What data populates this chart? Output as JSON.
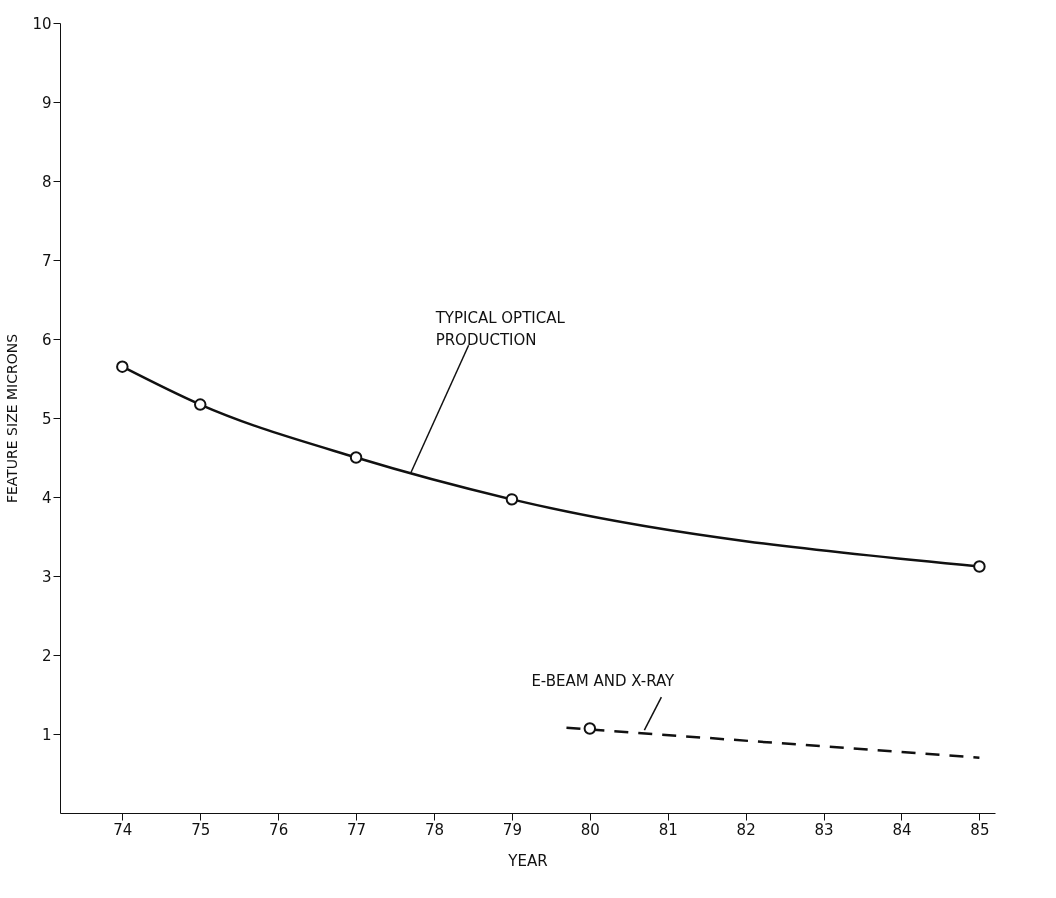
{
  "chart_data": {
    "type": "line",
    "xlabel": "YEAR",
    "ylabel": "FEATURE SIZE MICRONS",
    "xlim": [
      73.2,
      85.2
    ],
    "xticks": [
      74,
      75,
      76,
      77,
      78,
      79,
      80,
      81,
      82,
      83,
      84,
      85
    ],
    "ylim": [
      0,
      10
    ],
    "yticks": [
      1,
      2,
      3,
      4,
      5,
      6,
      7,
      8,
      9,
      10
    ],
    "series": [
      {
        "color": "#111111",
        "x": [
          74,
          75,
          77,
          79,
          85
        ],
        "values": [
          5.65,
          5.17,
          4.5,
          3.97,
          3.12
        ],
        "marker": "circle",
        "line_style": "solid"
      },
      {
        "color": "#111111",
        "x": [
          79.7,
          85
        ],
        "values": [
          1.08,
          0.7
        ],
        "marker": "none",
        "line_style": "dashed"
      },
      {
        "type": "scatter",
        "color": "#111111",
        "x": [
          80
        ],
        "values": [
          1.07
        ],
        "marker": "circle"
      }
    ],
    "annotations": [
      {
        "text": "TYPICAL OPTICAL\nPRODUCTION",
        "x": 77.7,
        "y": 4.3
      },
      {
        "text": "E-BEAM AND X-RAY",
        "x": 80.7,
        "y": 1.05
      }
    ]
  }
}
